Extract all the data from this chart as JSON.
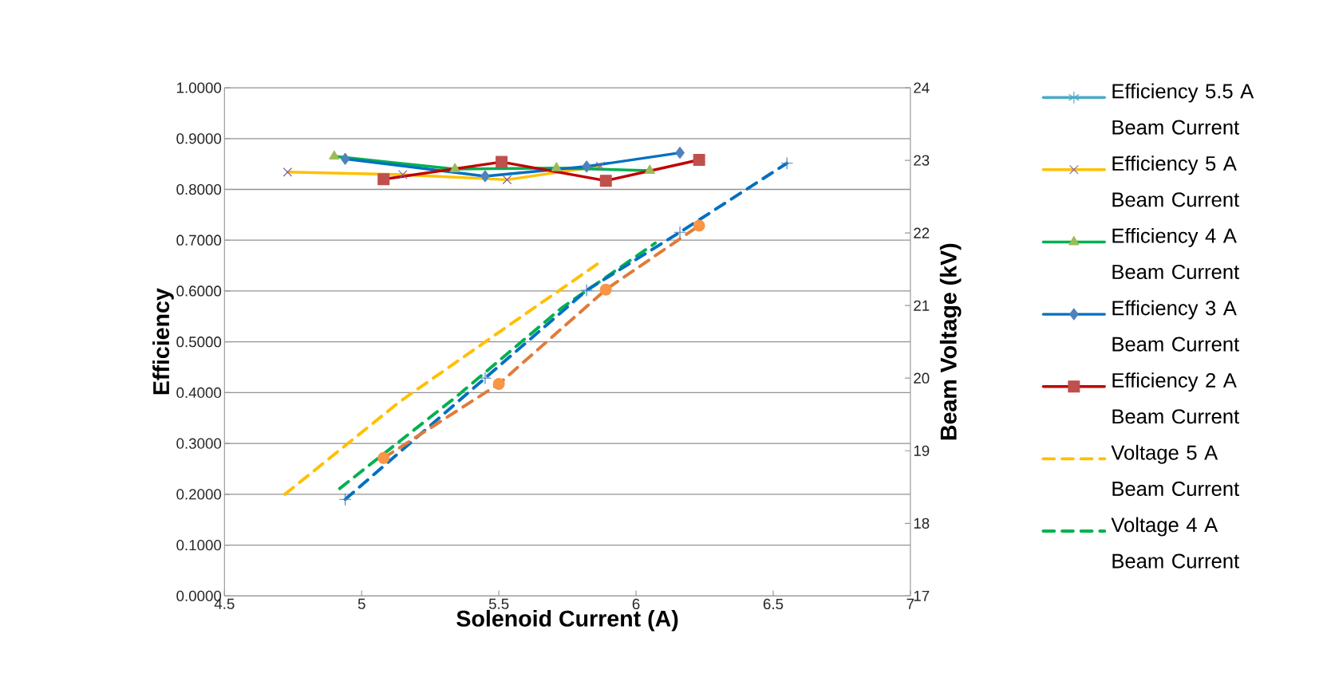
{
  "chart_data": {
    "type": "line",
    "xlabel": "Solenoid Current (A)",
    "ylabel": "Efficiency",
    "y2label": "Beam Voltage (kV)",
    "xlim": [
      4.5,
      7
    ],
    "xticks": [
      4.5,
      5,
      5.5,
      6,
      6.5,
      7
    ],
    "ylim": [
      0,
      1
    ],
    "yticks": [
      {
        "value": 0,
        "label": "0.0000"
      },
      {
        "value": 0.1,
        "label": "0.1000"
      },
      {
        "value": 0.2,
        "label": "0.2000"
      },
      {
        "value": 0.3,
        "label": "0.3000"
      },
      {
        "value": 0.4,
        "label": "0.4000"
      },
      {
        "value": 0.5,
        "label": "0.5000"
      },
      {
        "value": 0.6,
        "label": "0.6000"
      },
      {
        "value": 0.7,
        "label": "0.7000"
      },
      {
        "value": 0.8,
        "label": "0.8000"
      },
      {
        "value": 0.9,
        "label": "0.9000"
      },
      {
        "value": 1,
        "label": "1.0000"
      }
    ],
    "y2lim": [
      17,
      24
    ],
    "y2ticks": [
      17,
      18,
      19,
      20,
      21,
      22,
      23,
      24
    ],
    "grid": "y",
    "legend": "right",
    "series": [
      {
        "name": "Efficiency 5.5 A Beam Current",
        "color": "#4bacc6",
        "marker": "star",
        "line_style": "solid"
      },
      {
        "name": "Efficiency 5 A Beam Current",
        "color": "#ffc000",
        "marker": "cross",
        "line_style": "solid",
        "x": [
          4.73,
          5.15,
          5.53,
          5.87
        ],
        "values": [
          0.834,
          0.829,
          0.819,
          0.846
        ]
      },
      {
        "name": "Efficiency 4 A Beam Current",
        "color": "#00b050",
        "marker": "triangle",
        "line_style": "solid",
        "x": [
          4.9,
          5.34,
          5.71,
          6.05
        ],
        "values": [
          0.865,
          0.84,
          0.842,
          0.837
        ]
      },
      {
        "name": "Efficiency 3 A Beam Current",
        "color": "#0070c0",
        "marker": "diamond",
        "line_style": "solid",
        "x": [
          4.94,
          5.45,
          5.82,
          6.16
        ],
        "values": [
          0.86,
          0.826,
          0.845,
          0.872
        ]
      },
      {
        "name": "Efficiency 2 A Beam Current",
        "color": "#c00000",
        "marker": "square",
        "line_style": "solid",
        "x": [
          5.08,
          5.51,
          5.89,
          6.23
        ],
        "values": [
          0.82,
          0.854,
          0.817,
          0.858
        ]
      },
      {
        "name": "Voltage 5 A Beam Current",
        "color": "#ffc000",
        "line_style": "dashed",
        "axis": "y2",
        "x": [
          4.72,
          5.14,
          5.53,
          5.87
        ],
        "values": [
          18.4,
          19.68,
          20.71,
          21.6
        ]
      },
      {
        "name": "Voltage 4 A Beam Current",
        "color": "#00b050",
        "line_style": "dashed",
        "axis": "y2",
        "x": [
          4.92,
          5.35,
          5.73,
          6.07
        ],
        "values": [
          18.48,
          19.76,
          20.97,
          21.86
        ]
      },
      {
        "color": "#0070c0",
        "marker": "plus",
        "line_style": "dashed",
        "axis": "y2",
        "x": [
          4.94,
          5.45,
          5.82,
          6.16,
          6.55
        ],
        "values": [
          18.33,
          20.0,
          21.21,
          22.01,
          22.96
        ]
      },
      {
        "color": "#e07b39",
        "marker": "circle",
        "line_style": "dashed",
        "axis": "y2",
        "x": [
          5.08,
          5.5,
          5.89,
          6.23
        ],
        "values": [
          18.9,
          19.92,
          21.22,
          22.1
        ]
      }
    ]
  }
}
